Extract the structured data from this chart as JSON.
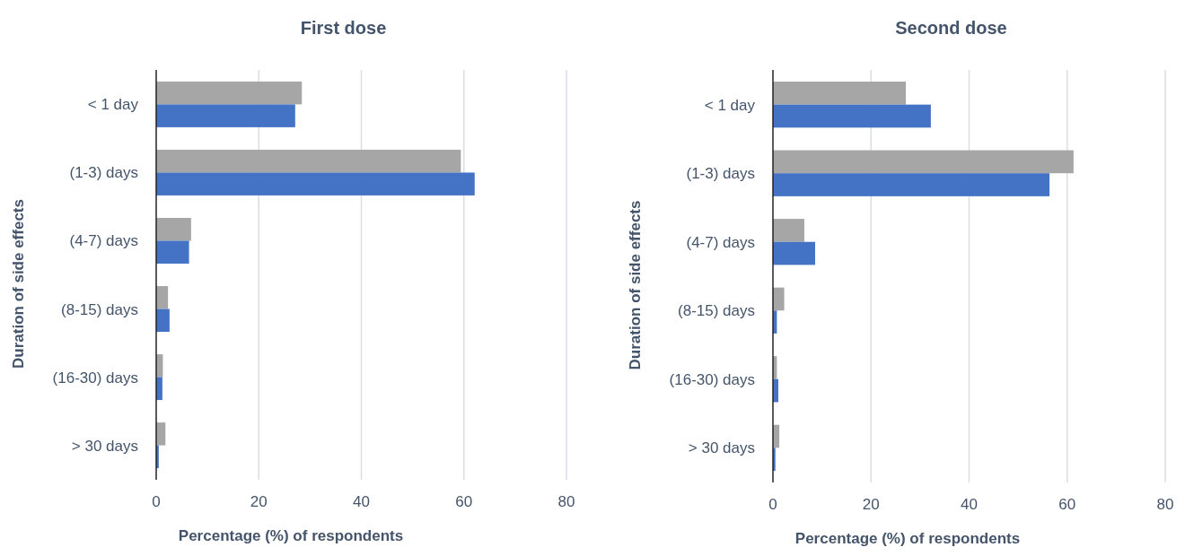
{
  "chart_data": [
    {
      "type": "bar",
      "orientation": "horizontal",
      "title": "First dose",
      "xlabel": "Percentage (%) of respondents",
      "ylabel": "Duration of side effects",
      "categories": [
        "< 1 day",
        "(1-3) days",
        "(4-7) days",
        "(8-15) days",
        "(16-30) days",
        "> 30 days"
      ],
      "series": [
        {
          "color": "#a6a6a6",
          "values": [
            28.4,
            59.4,
            6.8,
            2.3,
            1.3,
            1.8
          ]
        },
        {
          "color": "#4472c4",
          "values": [
            27.1,
            62.1,
            6.4,
            2.6,
            1.2,
            0.5
          ]
        }
      ],
      "xlim": [
        0,
        80
      ],
      "xticks": [
        0,
        20,
        40,
        60,
        80
      ],
      "grid": "x"
    },
    {
      "type": "bar",
      "orientation": "horizontal",
      "title": "Second dose",
      "xlabel": "Percentage (%) of respondents",
      "ylabel": "Duration of side effects",
      "categories": [
        "< 1 day",
        "(1-3) days",
        "(4-7) days",
        "(8-15) days",
        "(16-30) days",
        "> 30 days"
      ],
      "series": [
        {
          "color": "#a6a6a6",
          "values": [
            27.1,
            61.3,
            6.4,
            2.3,
            0.8,
            1.3
          ]
        },
        {
          "color": "#4472c4",
          "values": [
            32.2,
            56.4,
            8.6,
            0.8,
            1.1,
            0.5
          ]
        }
      ],
      "xlim": [
        0,
        80
      ],
      "xticks": [
        0,
        20,
        40,
        60,
        80
      ],
      "grid": "x"
    }
  ]
}
